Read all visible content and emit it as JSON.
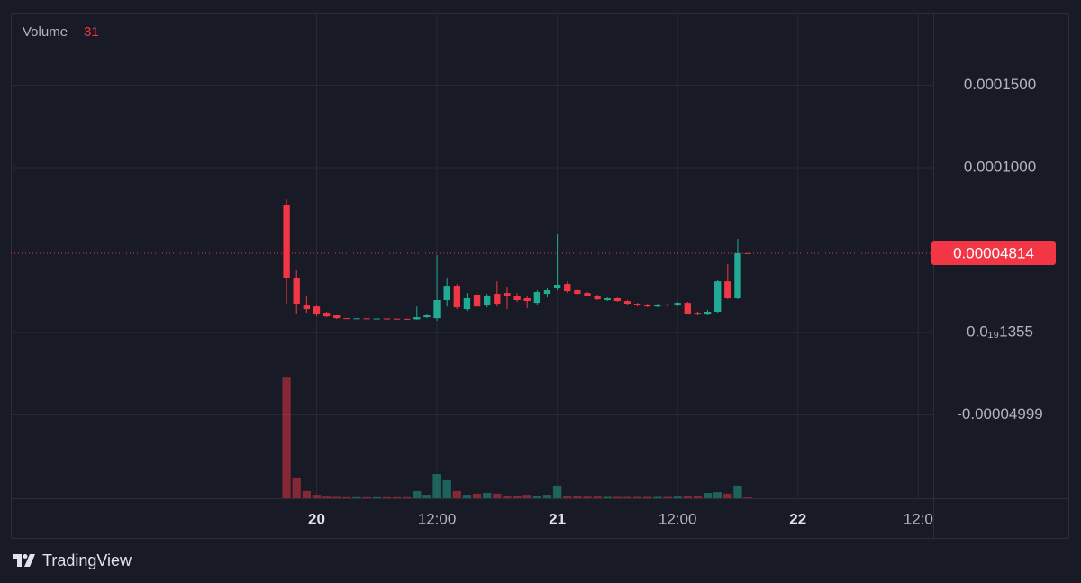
{
  "chart_data": {
    "type": "candlestick",
    "volume_label": "Volume",
    "branding": "TradingView",
    "categories": [
      null,
      null,
      null,
      null,
      null,
      null,
      null,
      null,
      null,
      null,
      null,
      null,
      null,
      null,
      null,
      null,
      null,
      null,
      null,
      null,
      null,
      null,
      null,
      null,
      null,
      null,
      null,
      null,
      null,
      null,
      "20",
      null,
      null,
      null,
      null,
      null,
      null,
      null,
      null,
      null,
      null,
      null,
      "12:00",
      null,
      null,
      null,
      null,
      null,
      null,
      null,
      null,
      null,
      null,
      null,
      "21",
      null,
      null,
      null,
      null,
      null,
      null,
      null,
      null,
      null,
      null,
      null,
      "12:00",
      null,
      null,
      null,
      null,
      null,
      null,
      null,
      null,
      null,
      null,
      null,
      "22",
      null,
      null,
      null,
      null,
      null,
      null,
      null,
      null,
      null,
      null,
      null,
      "12:0",
      null
    ],
    "open": [
      null,
      null,
      null,
      null,
      null,
      null,
      null,
      null,
      null,
      null,
      null,
      null,
      null,
      null,
      null,
      null,
      null,
      null,
      null,
      null,
      null,
      null,
      null,
      null,
      null,
      null,
      null,
      7.76e-05,
      3.33e-05,
      1.64e-05,
      1.58e-05,
      1.2e-05,
      1.04e-05,
      8.7e-06,
      8.6e-06,
      8.6e-06,
      8.5e-06,
      8.5e-06,
      8.4e-06,
      8.3e-06,
      8e-06,
      9.3e-06,
      8.7e-06,
      1.97e-05,
      2.84e-05,
      1.42e-05,
      2.3e-05,
      1.64e-05,
      2.35e-05,
      2.4e-05,
      2.24e-05,
      2.08e-05,
      1.8e-05,
      2.35e-05,
      2.68e-05,
      2.95e-05,
      2.57e-05,
      2.4e-05,
      2.24e-05,
      1.97e-05,
      2.08e-05,
      1.91e-05,
      1.75e-05,
      1.7e-05,
      1.58e-05,
      1.7e-05,
      1.64e-05,
      1.8e-05,
      1.2e-05,
      1.09e-05,
      1.26e-05,
      3.11e-05,
      2.08e-05,
      4.82e-05,
      null,
      null,
      null,
      null,
      null,
      null,
      null,
      null,
      null,
      null,
      null,
      null,
      null,
      null,
      null,
      null,
      null,
      null
    ],
    "high": [
      null,
      null,
      null,
      null,
      null,
      null,
      null,
      null,
      null,
      null,
      null,
      null,
      null,
      null,
      null,
      null,
      null,
      null,
      null,
      null,
      null,
      null,
      null,
      null,
      null,
      null,
      null,
      8.09e-05,
      3.77e-05,
      2.24e-05,
      1.69e-05,
      1.26e-05,
      1.04e-05,
      8.8e-06,
      8.7e-06,
      8.7e-06,
      8.6e-06,
      8.6e-06,
      8.5e-06,
      8.4e-06,
      1.58e-05,
      1.09e-05,
      4.7e-05,
      3.28e-05,
      2.95e-05,
      2.4e-05,
      2.68e-05,
      2.35e-05,
      3.11e-05,
      2.73e-05,
      2.4e-05,
      2.24e-05,
      2.57e-05,
      2.68e-05,
      5.96e-05,
      3.1e-05,
      2.62e-05,
      2.46e-05,
      2.29e-05,
      2.13e-05,
      2.13e-05,
      1.97e-05,
      1.8e-05,
      1.75e-05,
      1.75e-05,
      1.75e-05,
      1.86e-05,
      1.86e-05,
      1.26e-05,
      1.37e-05,
      3.17e-05,
      4.15e-05,
      5.68e-05,
      4.82e-05,
      null,
      null,
      null,
      null,
      null,
      null,
      null,
      null,
      null,
      null,
      null,
      null,
      null,
      null,
      null,
      null,
      null,
      null
    ],
    "low": [
      null,
      null,
      null,
      null,
      null,
      null,
      null,
      null,
      null,
      null,
      null,
      null,
      null,
      null,
      null,
      null,
      null,
      null,
      null,
      null,
      null,
      null,
      null,
      null,
      null,
      null,
      null,
      1.75e-05,
      1.15e-05,
      1.2e-05,
      9.8e-06,
      9.3e-06,
      8.2e-06,
      8.4e-06,
      8.4e-06,
      8.3e-06,
      8.3e-06,
      8.2e-06,
      8.1e-06,
      8e-06,
      7.7e-06,
      8.7e-06,
      7.1e-06,
      1.58e-05,
      1.42e-05,
      1.31e-05,
      1.48e-05,
      1.53e-05,
      1.58e-05,
      1.42e-05,
      1.86e-05,
      1.48e-05,
      1.69e-05,
      2.13e-05,
      2.57e-05,
      2.4e-05,
      2.3e-05,
      2.19e-05,
      1.97e-05,
      1.91e-05,
      1.86e-05,
      1.7e-05,
      1.58e-05,
      1.53e-05,
      1.53e-05,
      1.58e-05,
      1.58e-05,
      1.09e-05,
      1.04e-05,
      1.04e-05,
      1.2e-05,
      2.02e-05,
      2.02e-05,
      4.814e-05,
      null,
      null,
      null,
      null,
      null,
      null,
      null,
      null,
      null,
      null,
      null,
      null,
      null,
      null,
      null,
      null,
      null,
      null
    ],
    "close": [
      null,
      null,
      null,
      null,
      null,
      null,
      null,
      null,
      null,
      null,
      null,
      null,
      null,
      null,
      null,
      null,
      null,
      null,
      null,
      null,
      null,
      null,
      null,
      null,
      null,
      null,
      null,
      3.33e-05,
      1.75e-05,
      1.42e-05,
      1.09e-05,
      9.8e-06,
      8.7e-06,
      8.6e-06,
      8.6e-06,
      8.5e-06,
      8.5e-06,
      8.4e-06,
      8.3e-06,
      8.2e-06,
      9.3e-06,
      1.04e-05,
      1.97e-05,
      2.84e-05,
      1.53e-05,
      2.08e-05,
      1.58e-05,
      2.24e-05,
      1.75e-05,
      2.19e-05,
      1.97e-05,
      1.91e-05,
      2.46e-05,
      2.57e-05,
      2.9e-05,
      2.51e-05,
      2.35e-05,
      2.24e-05,
      2.02e-05,
      2.08e-05,
      1.91e-05,
      1.75e-05,
      1.64e-05,
      1.58e-05,
      1.7e-05,
      1.64e-05,
      1.8e-05,
      1.15e-05,
      1.09e-05,
      1.26e-05,
      3.11e-05,
      2.08e-05,
      4.82e-05,
      4.814e-05,
      null,
      null,
      null,
      null,
      null,
      null,
      null,
      null,
      null,
      null,
      null,
      null,
      null,
      null,
      null,
      null,
      null,
      null
    ],
    "volume": [
      null,
      null,
      null,
      null,
      null,
      null,
      null,
      null,
      null,
      null,
      null,
      null,
      null,
      null,
      null,
      null,
      null,
      null,
      null,
      null,
      null,
      null,
      null,
      null,
      null,
      null,
      null,
      4500,
      770,
      270,
      130,
      60,
      50,
      40,
      40,
      40,
      40,
      40,
      40,
      40,
      270,
      130,
      900,
      670,
      270,
      130,
      170,
      200,
      170,
      100,
      70,
      130,
      70,
      130,
      470,
      70,
      100,
      60,
      60,
      50,
      50,
      50,
      50,
      50,
      50,
      50,
      60,
      70,
      70,
      200,
      230,
      170,
      470,
      31,
      null,
      null,
      null,
      null,
      null,
      null,
      null,
      null,
      null,
      null,
      null,
      null,
      null,
      null,
      null,
      null,
      null,
      null
    ],
    "up_color": "#22ab94",
    "down_color": "#f23645",
    "volume_ylim": [
      0,
      18000
    ],
    "ylim": [
      -0.0001005,
      0.000194
    ],
    "yticks": [
      {
        "value": 0.00015,
        "label": "0.0001500"
      },
      {
        "value": 0.0001,
        "label": "0.0001000"
      },
      {
        "value": 1.355e-20,
        "label": "0.0₁₉1355"
      },
      -4.999e-05
    ],
    "grid": true
  }
}
